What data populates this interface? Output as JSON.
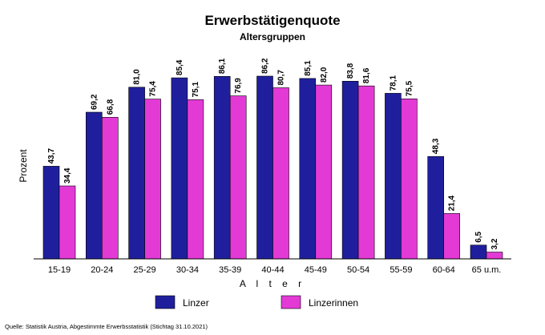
{
  "chart_data": {
    "type": "bar",
    "title": "Erwerbstätigenquote",
    "subtitle": "Altersgruppen",
    "xlabel": "A l t e r",
    "ylabel": "Prozent",
    "ylim": [
      0,
      100
    ],
    "grid": false,
    "legend_position": "bottom",
    "categories": [
      "15-19",
      "20-24",
      "25-29",
      "30-34",
      "35-39",
      "40-44",
      "45-49",
      "50-54",
      "55-59",
      "60-64",
      "65 u.m."
    ],
    "series": [
      {
        "name": "Linzer",
        "color": "#1f1f9e",
        "values": [
          43.7,
          69.2,
          81.0,
          85.4,
          86.1,
          86.2,
          85.1,
          83.8,
          78.1,
          48.3,
          6.5
        ],
        "labels": [
          "43,7",
          "69,2",
          "81,0",
          "85,4",
          "86,1",
          "86,2",
          "85,1",
          "83,8",
          "78,1",
          "48,3",
          "6,5"
        ]
      },
      {
        "name": "Linzerinnen",
        "color": "#e33ad6",
        "values": [
          34.4,
          66.8,
          75.4,
          75.1,
          76.9,
          80.7,
          82.0,
          81.6,
          75.5,
          21.4,
          3.2
        ],
        "labels": [
          "34,4",
          "66,8",
          "75,4",
          "75,1",
          "76,9",
          "80,7",
          "82,0",
          "81,6",
          "75,5",
          "21,4",
          "3,2"
        ]
      }
    ],
    "source": "Quelle: Statistik Austria, Abgestimmte Erwerbsstatistik (Stichtag 31.10.2021)"
  }
}
